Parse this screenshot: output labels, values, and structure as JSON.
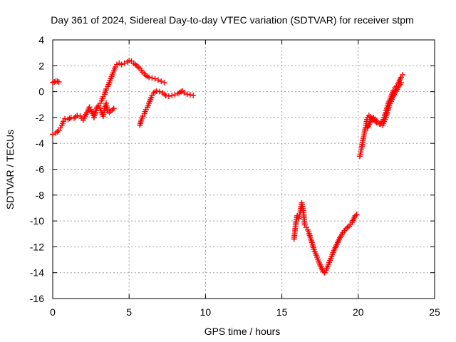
{
  "chart_data": {
    "type": "scatter",
    "title": "Day 361 of 2024, Sidereal Day-to-day VTEC variation (SDTVAR) for receiver stpm",
    "xlabel": "GPS time / hours",
    "ylabel": "SDTVAR / TECUs",
    "xlim": [
      0,
      25
    ],
    "ylim": [
      -16,
      4
    ],
    "xticks": [
      0,
      5,
      10,
      15,
      20,
      25
    ],
    "yticks": [
      -16,
      -14,
      -12,
      -10,
      -8,
      -6,
      -4,
      -2,
      0,
      2,
      4
    ],
    "grid": true,
    "marker": "+",
    "color": "#ff0000",
    "series": [
      {
        "name": "SDTVAR",
        "segments": [
          {
            "points": [
              [
                0.0,
                0.7
              ],
              [
                0.1,
                0.75
              ],
              [
                0.2,
                0.8
              ],
              [
                0.3,
                0.8
              ],
              [
                0.4,
                0.75
              ]
            ]
          },
          {
            "points": [
              [
                0.0,
                -3.3
              ],
              [
                0.2,
                -3.2
              ],
              [
                0.4,
                -3.0
              ],
              [
                0.5,
                -2.8
              ],
              [
                0.6,
                -2.6
              ],
              [
                0.7,
                -2.3
              ],
              [
                0.8,
                -2.1
              ],
              [
                1.0,
                -2.15
              ],
              [
                1.2,
                -2.0
              ],
              [
                1.4,
                -2.05
              ],
              [
                1.6,
                -1.85
              ],
              [
                1.8,
                -1.9
              ],
              [
                2.0,
                -2.2
              ],
              [
                2.1,
                -1.9
              ],
              [
                2.3,
                -1.5
              ],
              [
                2.4,
                -1.2
              ],
              [
                2.5,
                -1.4
              ],
              [
                2.6,
                -1.7
              ],
              [
                2.7,
                -2.0
              ],
              [
                2.8,
                -1.6
              ],
              [
                2.9,
                -1.2
              ],
              [
                3.0,
                -1.1
              ],
              [
                3.1,
                -0.9
              ],
              [
                3.2,
                -0.7
              ],
              [
                3.3,
                -0.4
              ],
              [
                3.4,
                -0.2
              ],
              [
                3.5,
                0.2
              ],
              [
                3.6,
                0.4
              ],
              [
                3.7,
                0.7
              ],
              [
                3.8,
                1.0
              ],
              [
                3.9,
                1.3
              ],
              [
                4.0,
                1.6
              ],
              [
                4.1,
                1.9
              ],
              [
                4.2,
                2.1
              ],
              [
                4.35,
                2.2
              ],
              [
                4.5,
                2.1
              ],
              [
                4.7,
                2.2
              ],
              [
                4.9,
                2.3
              ],
              [
                5.0,
                2.4
              ],
              [
                5.15,
                2.35
              ],
              [
                5.3,
                2.2
              ],
              [
                5.5,
                2.0
              ],
              [
                5.7,
                1.8
              ],
              [
                5.9,
                1.5
              ],
              [
                6.1,
                1.25
              ],
              [
                6.3,
                1.1
              ],
              [
                6.5,
                1.05
              ],
              [
                6.7,
                1.0
              ],
              [
                6.9,
                0.9
              ],
              [
                7.1,
                0.8
              ],
              [
                7.3,
                0.7
              ]
            ]
          },
          {
            "points": [
              [
                3.0,
                -1.1
              ],
              [
                3.1,
                -1.3
              ],
              [
                3.2,
                -1.6
              ],
              [
                3.3,
                -1.9
              ],
              [
                3.4,
                -1.3
              ],
              [
                3.5,
                -0.9
              ],
              [
                3.6,
                -1.5
              ],
              [
                3.7,
                -1.6
              ],
              [
                3.8,
                -1.5
              ],
              [
                3.9,
                -1.4
              ],
              [
                4.0,
                -1.3
              ]
            ]
          },
          {
            "points": [
              [
                5.7,
                -2.6
              ],
              [
                5.8,
                -2.2
              ],
              [
                5.9,
                -1.9
              ],
              [
                6.0,
                -1.7
              ],
              [
                6.1,
                -1.4
              ],
              [
                6.2,
                -1.2
              ],
              [
                6.3,
                -0.9
              ],
              [
                6.4,
                -0.6
              ],
              [
                6.5,
                -0.3
              ],
              [
                6.6,
                -0.1
              ],
              [
                6.8,
                0.05
              ],
              [
                7.0,
                0.0
              ],
              [
                7.2,
                -0.1
              ],
              [
                7.4,
                -0.3
              ],
              [
                7.6,
                -0.35
              ],
              [
                7.8,
                -0.3
              ],
              [
                8.0,
                -0.25
              ],
              [
                8.2,
                -0.15
              ],
              [
                8.4,
                0.0
              ],
              [
                8.5,
                0.05
              ],
              [
                8.6,
                -0.1
              ],
              [
                8.8,
                -0.2
              ],
              [
                9.0,
                -0.25
              ],
              [
                9.2,
                -0.3
              ]
            ]
          },
          {
            "points": [
              [
                15.8,
                -11.4
              ],
              [
                15.9,
                -10.3
              ],
              [
                16.0,
                -9.6
              ],
              [
                16.1,
                -9.8
              ],
              [
                16.2,
                -9.3
              ],
              [
                16.3,
                -8.6
              ],
              [
                16.4,
                -9.2
              ],
              [
                16.5,
                -10.3
              ],
              [
                16.6,
                -10.5
              ],
              [
                16.7,
                -10.7
              ],
              [
                16.9,
                -11.4
              ],
              [
                17.1,
                -12.2
              ],
              [
                17.3,
                -12.8
              ],
              [
                17.5,
                -13.4
              ],
              [
                17.7,
                -13.9
              ],
              [
                17.8,
                -14.0
              ],
              [
                17.9,
                -13.8
              ],
              [
                18.0,
                -13.5
              ],
              [
                18.2,
                -12.9
              ],
              [
                18.4,
                -12.3
              ],
              [
                18.6,
                -11.8
              ],
              [
                18.8,
                -11.3
              ],
              [
                19.0,
                -10.9
              ],
              [
                19.2,
                -10.6
              ],
              [
                19.4,
                -10.4
              ],
              [
                19.6,
                -10.1
              ],
              [
                19.8,
                -9.6
              ],
              [
                19.9,
                -9.5
              ]
            ]
          },
          {
            "points": [
              [
                20.1,
                -5.0
              ],
              [
                20.2,
                -4.5
              ],
              [
                20.3,
                -3.8
              ],
              [
                20.4,
                -3.2
              ],
              [
                20.5,
                -2.6
              ],
              [
                20.6,
                -2.0
              ],
              [
                20.7,
                -1.85
              ],
              [
                20.8,
                -1.95
              ],
              [
                21.0,
                -2.2
              ],
              [
                21.2,
                -2.4
              ],
              [
                21.4,
                -2.5
              ],
              [
                21.6,
                -2.3
              ],
              [
                21.7,
                -2.0
              ],
              [
                21.8,
                -1.6
              ],
              [
                21.9,
                -1.2
              ],
              [
                22.0,
                -0.8
              ],
              [
                22.1,
                -0.5
              ],
              [
                22.2,
                -0.2
              ],
              [
                22.3,
                0.1
              ],
              [
                22.4,
                0.3
              ],
              [
                22.5,
                0.4
              ],
              [
                22.6,
                0.6
              ],
              [
                22.7,
                0.85
              ],
              [
                22.8,
                1.1
              ],
              [
                22.9,
                1.3
              ]
            ]
          },
          {
            "points": [
              [
                20.6,
                -2.8
              ],
              [
                20.8,
                -2.3
              ],
              [
                21.0,
                -2.0
              ],
              [
                21.3,
                -2.4
              ],
              [
                21.6,
                -2.6
              ],
              [
                21.8,
                -2.0
              ],
              [
                22.0,
                -1.2
              ],
              [
                22.2,
                -0.6
              ],
              [
                22.4,
                -0.1
              ],
              [
                22.6,
                0.3
              ],
              [
                22.8,
                0.7
              ]
            ]
          }
        ]
      }
    ]
  }
}
